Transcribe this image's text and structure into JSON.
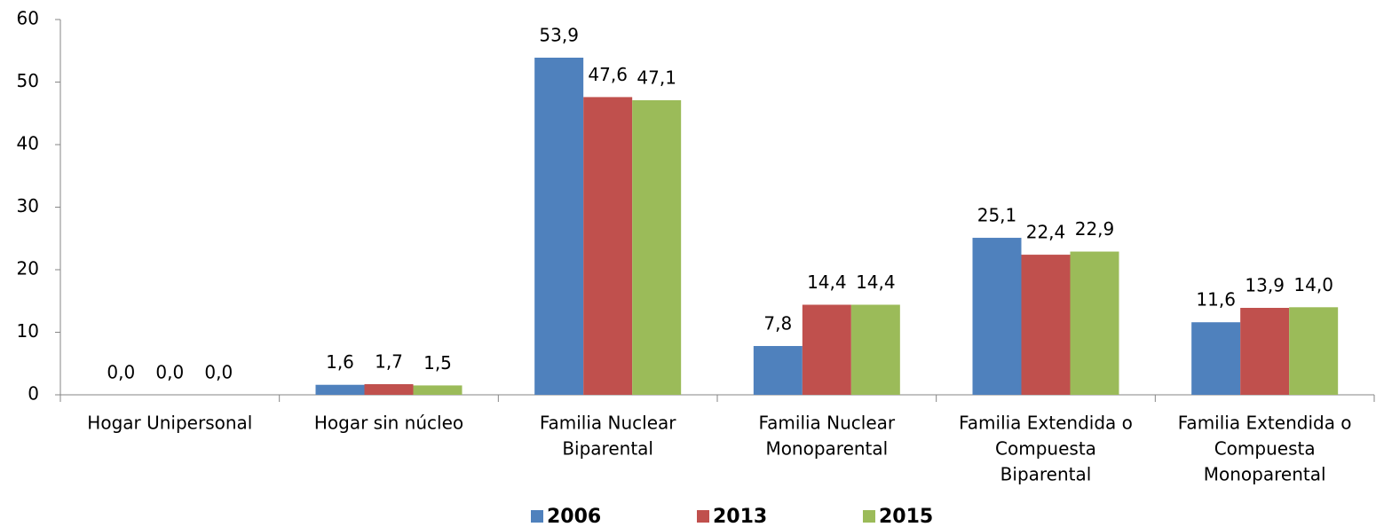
{
  "chart_data": {
    "type": "bar",
    "categories": [
      [
        "Hogar Unipersonal"
      ],
      [
        "Hogar sin núcleo"
      ],
      [
        "Familia Nuclear",
        "Biparental"
      ],
      [
        "Familia Nuclear",
        "Monoparental"
      ],
      [
        "Familia Extendida o",
        "Compuesta",
        "Biparental"
      ],
      [
        "Familia Extendida o",
        "Compuesta",
        "Monoparental"
      ]
    ],
    "series": [
      {
        "name": "2006",
        "color": "#4f81bd",
        "values": [
          0,
          1.6,
          53.9,
          7.8,
          25.1,
          11.6
        ],
        "value_labels": [
          "0,0",
          "1,6",
          "53,9",
          "7,8",
          "25,1",
          "11,6"
        ]
      },
      {
        "name": "2013",
        "color": "#c0504d",
        "values": [
          0,
          1.7,
          47.6,
          14.4,
          22.4,
          13.9
        ],
        "value_labels": [
          "0,0",
          "1,7",
          "47,6",
          "14,4",
          "22,4",
          "13,9"
        ]
      },
      {
        "name": "2015",
        "color": "#9bbb59",
        "values": [
          0,
          1.5,
          47.1,
          14.4,
          22.9,
          14.0
        ],
        "value_labels": [
          "0,0",
          "1,5",
          "47,1",
          "14,4",
          "22,9",
          "14,0"
        ]
      }
    ],
    "ylim": [
      0,
      60
    ],
    "yticks": [
      0,
      10,
      20,
      30,
      40,
      50,
      60
    ],
    "grid": false,
    "legend": "bottom"
  }
}
